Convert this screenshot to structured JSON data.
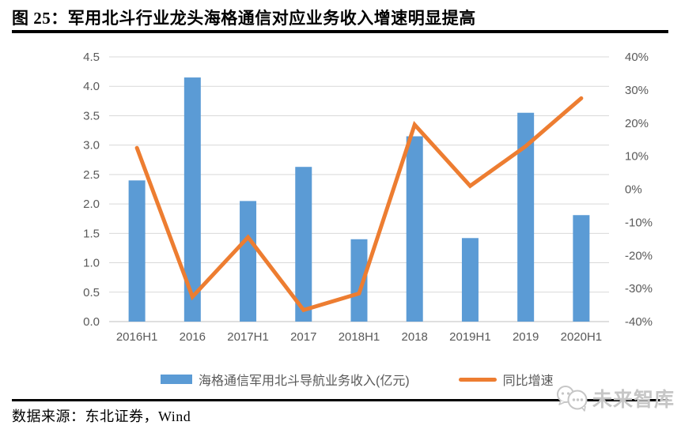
{
  "page": {
    "title": "图 25：军用北斗行业龙头海格通信对应业务收入增速明显提高",
    "source_note": "数据来源：东北证券，Wind",
    "watermark": "未来智库"
  },
  "colors": {
    "bar": "#5B9BD5",
    "line": "#ED7D31",
    "axis_text": "#595959",
    "gridline": "#D9D9D9",
    "baseline": "#BFBFBF",
    "title_text": "#000000",
    "watermark_gray": "#c6c6c6"
  },
  "chart_data": {
    "type": "bar",
    "subtype": "bar+line dual axis",
    "categories": [
      "2016H1",
      "2016",
      "2017H1",
      "2017",
      "2018H1",
      "2018",
      "2019H1",
      "2019",
      "2020H1"
    ],
    "series": [
      {
        "name": "海格通信军用北斗导航业务收入(亿元)",
        "type": "bar",
        "axis": "left",
        "values": [
          2.4,
          4.15,
          2.05,
          2.63,
          1.4,
          3.15,
          1.42,
          3.55,
          1.81
        ]
      },
      {
        "name": "同比增速",
        "type": "line",
        "axis": "right",
        "values": [
          12.5,
          -32.5,
          -14.5,
          -36.5,
          -31.5,
          19.5,
          1,
          13,
          27.5
        ]
      }
    ],
    "left_axis": {
      "min": 0,
      "max": 4.5,
      "step": 0.5,
      "tick_labels": [
        "0.0",
        "0.5",
        "1.0",
        "1.5",
        "2.0",
        "2.5",
        "3.0",
        "3.5",
        "4.0",
        "4.5"
      ]
    },
    "right_axis": {
      "min": -40,
      "max": 40,
      "step": 10,
      "tick_labels": [
        "-40%",
        "-30%",
        "-20%",
        "-10%",
        "0%",
        "10%",
        "20%",
        "30%",
        "40%"
      ],
      "unit": "%"
    },
    "grid": true,
    "legend_position": "bottom",
    "title": "军用北斗行业龙头海格通信对应业务收入增速明显提高"
  }
}
